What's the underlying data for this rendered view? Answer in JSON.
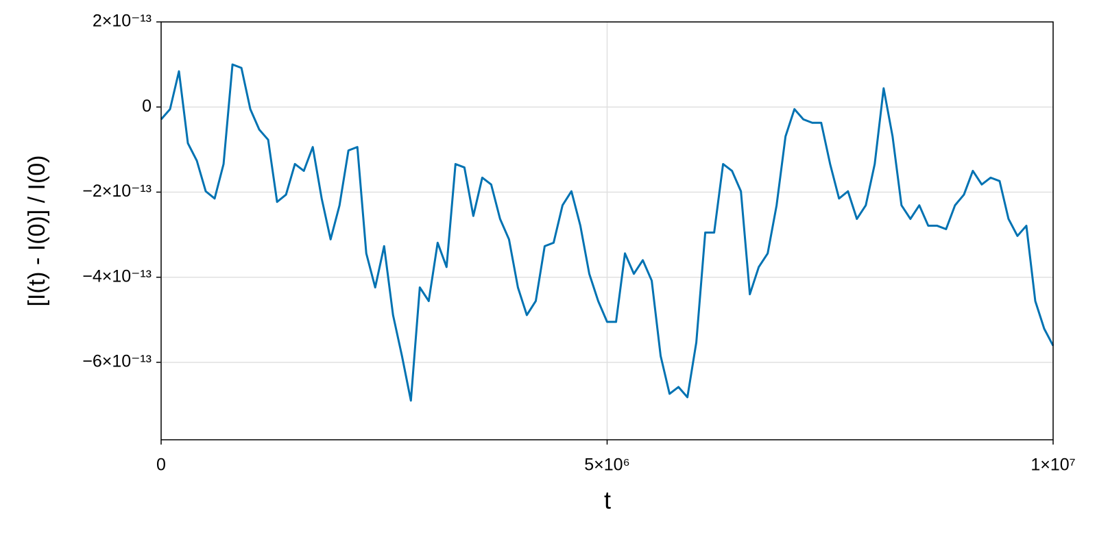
{
  "chart_data": {
    "type": "line",
    "x_label": "t",
    "y_label": "[I(t) - I(0)] / I(0)",
    "x": [
      0,
      100000,
      200000,
      300000,
      400000,
      500000,
      600000,
      700000,
      800000,
      900000,
      1000000,
      1100000,
      1200000,
      1300000,
      1400000,
      1500000,
      1600000,
      1700000,
      1800000,
      1900000,
      2000000,
      2100000,
      2200000,
      2300000,
      2400000,
      2500000,
      2600000,
      2700000,
      2800000,
      2900000,
      3000000,
      3100000,
      3200000,
      3300000,
      3400000,
      3500000,
      3600000,
      3700000,
      3800000,
      3900000,
      4000000,
      4100000,
      4200000,
      4300000,
      4400000,
      4500000,
      4600000,
      4700000,
      4800000,
      4900000,
      5000000,
      5100000,
      5200000,
      5300000,
      5400000,
      5500000,
      5600000,
      5700000,
      5800000,
      5900000,
      6000000,
      6100000,
      6200000,
      6300000,
      6400000,
      6500000,
      6600000,
      6700000,
      6800000,
      6900000,
      7000000,
      7100000,
      7200000,
      7300000,
      7400000,
      7500000,
      7600000,
      7700000,
      7800000,
      7900000,
      8000000,
      8100000,
      8200000,
      8300000,
      8400000,
      8500000,
      8600000,
      8700000,
      8800000,
      8900000,
      9000000,
      9100000,
      9200000,
      9300000,
      9400000,
      9500000,
      9600000,
      9700000,
      9800000,
      9900000,
      10000000
    ],
    "series": [
      {
        "color": "#0072b2",
        "values": [
          -2.9e-14,
          -5e-15,
          8.4e-14,
          -8.5e-14,
          -1.26e-13,
          -1.98e-13,
          -2.15e-13,
          -1.34e-13,
          1e-13,
          9.2e-14,
          -5e-15,
          -5.3e-14,
          -7.7e-14,
          -2.23e-13,
          -2.06e-13,
          -1.34e-13,
          -1.5e-13,
          -9.4e-14,
          -2.15e-13,
          -3.11e-13,
          -2.31e-13,
          -1.02e-13,
          -9.4e-14,
          -3.44e-13,
          -4.24e-13,
          -3.27e-13,
          -4.89e-13,
          -5.85e-13,
          -6.9e-13,
          -4.24e-13,
          -4.56e-13,
          -3.19e-13,
          -3.76e-13,
          -1.34e-13,
          -1.42e-13,
          -2.56e-13,
          -1.66e-13,
          -1.82e-13,
          -2.63e-13,
          -3.11e-13,
          -4.24e-13,
          -4.89e-13,
          -4.56e-13,
          -3.27e-13,
          -3.19e-13,
          -2.31e-13,
          -1.98e-13,
          -2.79e-13,
          -3.92e-13,
          -4.56e-13,
          -5.05e-13,
          -5.05e-13,
          -3.44e-13,
          -3.92e-13,
          -3.6e-13,
          -4.08e-13,
          -5.85e-13,
          -6.74e-13,
          -6.58e-13,
          -6.82e-13,
          -5.53e-13,
          -2.95e-13,
          -2.95e-13,
          -1.34e-13,
          -1.5e-13,
          -1.98e-13,
          -4.4e-13,
          -3.76e-13,
          -3.44e-13,
          -2.31e-13,
          -6.9e-14,
          -5e-15,
          -2.9e-14,
          -3.7e-14,
          -3.7e-14,
          -1.34e-13,
          -2.15e-13,
          -1.98e-13,
          -2.63e-13,
          -2.31e-13,
          -1.34e-13,
          4.4e-14,
          -6.9e-14,
          -2.31e-13,
          -2.63e-13,
          -2.31e-13,
          -2.79e-13,
          -2.79e-13,
          -2.87e-13,
          -2.31e-13,
          -2.06e-13,
          -1.5e-13,
          -1.82e-13,
          -1.66e-13,
          -1.74e-13,
          -2.63e-13,
          -3.03e-13,
          -2.79e-13,
          -4.56e-13,
          -5.21e-13,
          -5.61e-13
        ]
      }
    ],
    "xlim": [
      0,
      10000000
    ],
    "ylim": [
      -7.82e-13,
      2e-13
    ],
    "xticks": [
      0,
      {
        "value": 5000000,
        "label": "5×10⁶"
      },
      {
        "value": 10000000,
        "label": "1×10⁷"
      }
    ],
    "yticks": [
      {
        "value": 2e-13,
        "label": "2×10⁻¹³"
      },
      0,
      {
        "value": -2e-13,
        "label": "−2×10⁻¹³"
      },
      {
        "value": -4e-13,
        "label": "−4×10⁻¹³"
      },
      {
        "value": -6e-13,
        "label": "−6×10⁻¹³"
      }
    ],
    "grid": true
  }
}
